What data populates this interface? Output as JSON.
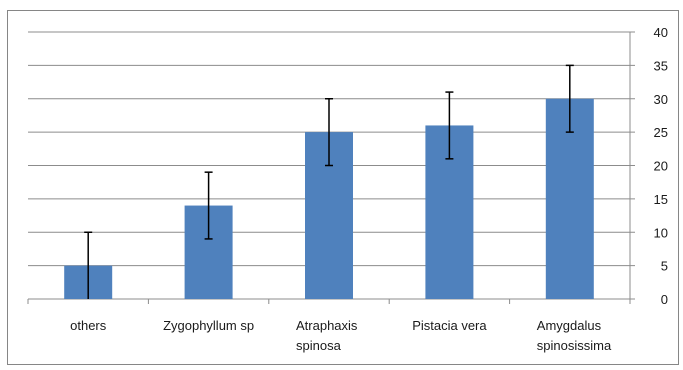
{
  "chart_data": {
    "type": "bar",
    "categories": [
      [
        "others"
      ],
      [
        "Zygophyllum sp"
      ],
      [
        "Atraphaxis",
        "spinosa"
      ],
      [
        "Pistacia vera"
      ],
      [
        "Amygdalus",
        "spinosissima"
      ]
    ],
    "series": [
      {
        "values": [
          5,
          14,
          25,
          26,
          30
        ],
        "error": [
          5,
          5,
          5,
          5,
          5
        ],
        "color": "#4f81bd"
      }
    ],
    "yaxis": {
      "position": "right",
      "ylim": [
        0,
        40
      ],
      "ticks": [
        0,
        5,
        10,
        15,
        20,
        25,
        30,
        35,
        40
      ]
    },
    "grid": true,
    "legend": "none",
    "title": "",
    "xlabel": "",
    "ylabel": ""
  }
}
